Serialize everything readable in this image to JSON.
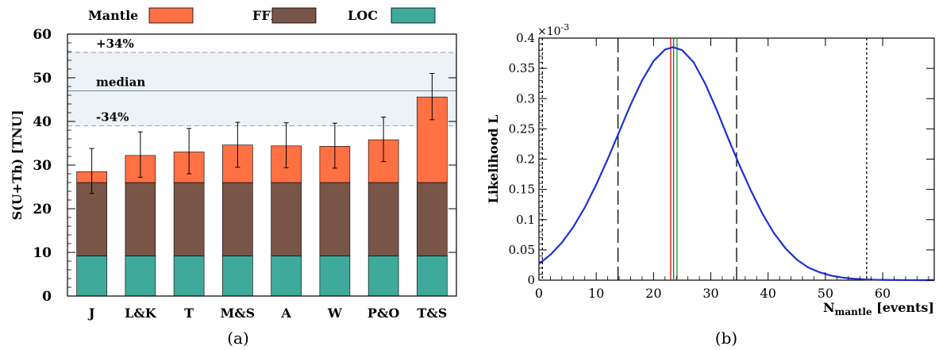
{
  "chart_data": [
    {
      "type": "bar",
      "caption": "(a)",
      "ylabel": "S(U+Th) [TNU]",
      "ylim": [
        0,
        60
      ],
      "yticks": [
        0,
        10,
        20,
        30,
        40,
        50,
        60
      ],
      "categories": [
        "J",
        "L&K",
        "T",
        "M&S",
        "A",
        "W",
        "P&O",
        "T&S"
      ],
      "stacked": true,
      "legend": [
        {
          "name": "Mantle",
          "color": "#ff7043"
        },
        {
          "name": "FFL",
          "color": "#795548"
        },
        {
          "name": "LOC",
          "color": "#3fa99b"
        }
      ],
      "series": [
        {
          "name": "LOC",
          "values": [
            9.2,
            9.2,
            9.2,
            9.2,
            9.2,
            9.2,
            9.2,
            9.2
          ]
        },
        {
          "name": "FFL",
          "values": [
            16.8,
            16.8,
            16.8,
            16.8,
            16.8,
            16.8,
            16.8,
            16.8
          ]
        },
        {
          "name": "Mantle",
          "values": [
            2.5,
            6.2,
            7.0,
            8.6,
            8.4,
            8.3,
            9.8,
            19.6
          ]
        }
      ],
      "totals": [
        28.5,
        32.2,
        33.0,
        34.6,
        34.4,
        34.3,
        35.8,
        45.6
      ],
      "error_bars": [
        {
          "low": 23.5,
          "high": 33.8
        },
        {
          "low": 27.2,
          "high": 37.6
        },
        {
          "low": 28.0,
          "high": 38.4
        },
        {
          "low": 29.5,
          "high": 39.8
        },
        {
          "low": 29.4,
          "high": 39.7
        },
        {
          "low": 29.3,
          "high": 39.6
        },
        {
          "low": 30.8,
          "high": 41.0
        },
        {
          "low": 40.4,
          "high": 51.0
        }
      ],
      "band": {
        "low": 39.0,
        "high": 56.0,
        "color": "#edf2f7"
      },
      "reference_lines": [
        {
          "label": "+34%",
          "value": 55.8,
          "style": "dashed"
        },
        {
          "label": "median",
          "value": 47.0,
          "style": "solid"
        },
        {
          "label": "-34%",
          "value": 39.0,
          "style": "dashed"
        }
      ]
    },
    {
      "type": "line",
      "caption": "(b)",
      "ylabel": "Likelihood L",
      "xlabel_main": "N",
      "xlabel_sub": "mantle",
      "xlabel_unit": " [events]",
      "y_exponent": "×10",
      "y_exponent_power": "-3",
      "xlim": [
        0,
        69
      ],
      "ylim": [
        0,
        0.4
      ],
      "xticks": [
        0,
        10,
        20,
        30,
        40,
        50,
        60
      ],
      "yticks": [
        0,
        0.05,
        0.1,
        0.15,
        0.2,
        0.25,
        0.3,
        0.35,
        0.4
      ],
      "ytick_labels": [
        "0",
        "0.05",
        "0.1",
        "0.15",
        "0.2",
        "0.25",
        "0.3",
        "0.35",
        "0.4"
      ],
      "curve": {
        "color": "#1f2fd6",
        "x": [
          0,
          2,
          4,
          6,
          8,
          10,
          12,
          14,
          16,
          18,
          20,
          22,
          23.4,
          25,
          27,
          29,
          31,
          33,
          35,
          37,
          39,
          41,
          43,
          45,
          47,
          49,
          51,
          53,
          55,
          57,
          59,
          61,
          63,
          65,
          67,
          69
        ],
        "y": [
          0.027,
          0.042,
          0.062,
          0.088,
          0.12,
          0.158,
          0.2,
          0.245,
          0.29,
          0.33,
          0.362,
          0.381,
          0.385,
          0.38,
          0.36,
          0.325,
          0.282,
          0.235,
          0.19,
          0.148,
          0.11,
          0.078,
          0.053,
          0.034,
          0.021,
          0.013,
          0.0075,
          0.0042,
          0.0023,
          0.0012,
          0.0006,
          0.0003,
          0.00015,
          7e-05,
          3e-05,
          1e-05
        ]
      },
      "vertical_lines": [
        {
          "x": 13.8,
          "style": "longdash",
          "color": "#000000"
        },
        {
          "x": 34.5,
          "style": "longdash",
          "color": "#000000"
        },
        {
          "x": 57.2,
          "style": "dotted",
          "color": "#000000"
        },
        {
          "x": 0.6,
          "style": "dotted",
          "color": "#000000"
        },
        {
          "x": 23.0,
          "style": "solid",
          "color": "#d11f1f"
        },
        {
          "x": 23.5,
          "style": "solid",
          "color": "#555555"
        },
        {
          "x": 24.1,
          "style": "solid",
          "color": "#16a82c"
        }
      ]
    }
  ]
}
